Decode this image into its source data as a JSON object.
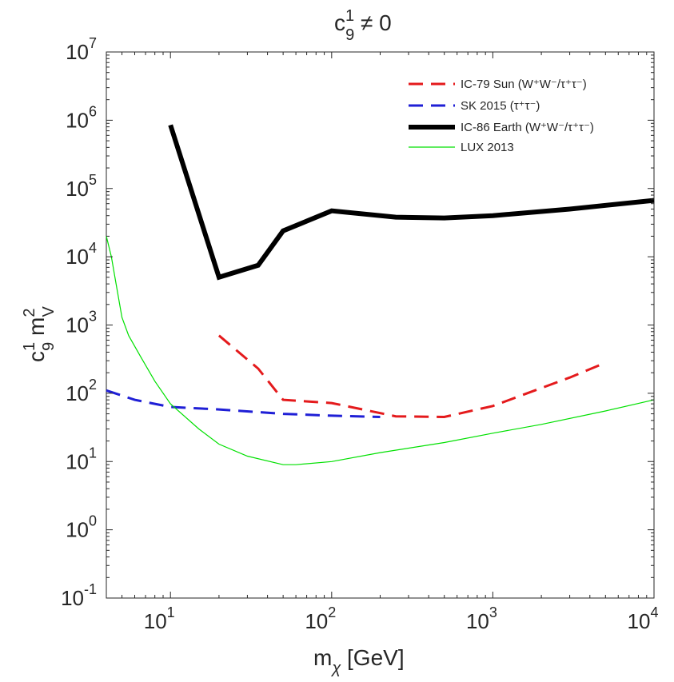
{
  "chart_data": {
    "type": "line",
    "title": {
      "base": "c",
      "sup": "1",
      "sub": "9",
      "rest": " ≠ 0"
    },
    "xlabel": {
      "base": "m",
      "sub": "χ",
      "rest": "  [GeV]"
    },
    "ylabel": {
      "c": "c",
      "c_sup": "1",
      "c_sub": "9",
      "m": " m",
      "m_sup": "2",
      "m_sub": "V"
    },
    "xscale": "log",
    "yscale": "log",
    "xlim": [
      4,
      10000
    ],
    "ylim": [
      0.1,
      10000000
    ],
    "grid": false,
    "legend_position": "top-right",
    "x_ticks": [
      {
        "value": 10,
        "base": "10",
        "exp": "1"
      },
      {
        "value": 100,
        "base": "10",
        "exp": "2"
      },
      {
        "value": 1000,
        "base": "10",
        "exp": "3"
      },
      {
        "value": 10000,
        "base": "10",
        "exp": "4"
      }
    ],
    "y_ticks": [
      {
        "value": 0.1,
        "base": "10",
        "exp": "-1"
      },
      {
        "value": 1,
        "base": "10",
        "exp": "0"
      },
      {
        "value": 10,
        "base": "10",
        "exp": "1"
      },
      {
        "value": 100,
        "base": "10",
        "exp": "2"
      },
      {
        "value": 1000,
        "base": "10",
        "exp": "3"
      },
      {
        "value": 10000,
        "base": "10",
        "exp": "4"
      },
      {
        "value": 100000,
        "base": "10",
        "exp": "5"
      },
      {
        "value": 1000000,
        "base": "10",
        "exp": "6"
      },
      {
        "value": 10000000,
        "base": "10",
        "exp": "7"
      }
    ],
    "series": [
      {
        "key": "ic79",
        "name": "IC-79 Sun (W⁺W⁻/τ⁺τ⁻)",
        "color": "#e41a1c",
        "style": "dashed",
        "x": [
          20,
          35,
          50,
          100,
          250,
          500,
          1000,
          3000,
          5000
        ],
        "y": [
          700,
          230,
          80,
          72,
          46,
          45,
          65,
          170,
          280
        ]
      },
      {
        "key": "sk2015",
        "name": "SK 2015 (τ⁺τ⁻)",
        "color": "#1f1fd6",
        "style": "dashed",
        "x": [
          4,
          6,
          10,
          20,
          50,
          100,
          200
        ],
        "y": [
          110,
          80,
          63,
          58,
          50,
          47,
          45
        ]
      },
      {
        "key": "ic86",
        "name": "IC-86 Earth (W⁺W⁻/τ⁺τ⁻)",
        "color": "#000000",
        "style": "solid-thick",
        "x": [
          10,
          20,
          35,
          50,
          100,
          250,
          500,
          1000,
          3000,
          10000
        ],
        "y": [
          850000,
          5000,
          7500,
          24000,
          47000,
          38000,
          37000,
          40000,
          50000,
          67000
        ]
      },
      {
        "key": "lux2013",
        "name": "LUX 2013",
        "color": "#00e000",
        "style": "solid-thin",
        "x": [
          4,
          4.3,
          4.6,
          5,
          5.5,
          6.5,
          8,
          10,
          15,
          20,
          30,
          50,
          60,
          100,
          200,
          500,
          1000,
          2000,
          5000,
          10000
        ],
        "y": [
          20000,
          10000,
          4000,
          1300,
          700,
          350,
          150,
          70,
          30,
          18,
          12,
          9,
          9,
          10,
          13.5,
          19,
          26,
          35,
          55,
          80
        ]
      }
    ]
  }
}
